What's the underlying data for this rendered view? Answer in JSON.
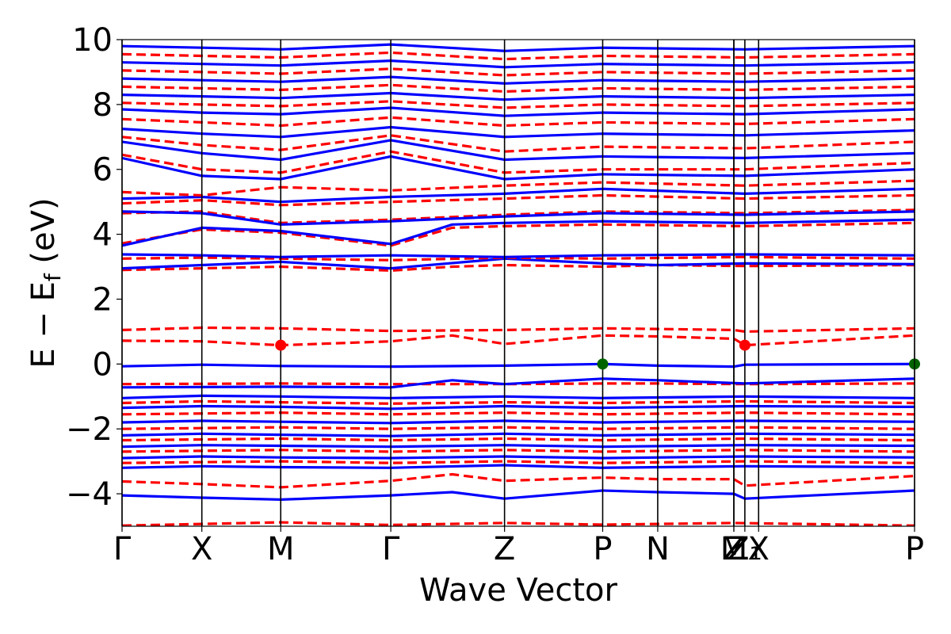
{
  "chart_data": {
    "type": "line",
    "title": "",
    "xlabel": "Wave Vector",
    "ylabel_main": "E − E",
    "ylabel_sub": "f",
    "ylabel_unit": " (eV)",
    "ylim": [
      -5,
      10
    ],
    "yticks": [
      -4,
      -2,
      0,
      2,
      4,
      6,
      8,
      10
    ],
    "ytick_labels": [
      "−4",
      "−2",
      "0",
      "2",
      "4",
      "6",
      "8",
      "10"
    ],
    "xlim": [
      0,
      8.64
    ],
    "kpoints": [
      {
        "label": "Γ",
        "x": 0
      },
      {
        "label": "X",
        "x": 0.87
      },
      {
        "label": "M",
        "x": 1.73
      },
      {
        "label": "Γ",
        "x": 2.93
      },
      {
        "label": "Z",
        "x": 4.17
      },
      {
        "label": "P",
        "x": 5.24
      },
      {
        "label": "N",
        "x": 5.84
      },
      {
        "label": "M",
        "x": 6.67
      },
      {
        "label": "Z",
        "x": 6.67
      },
      {
        "label": "Z₁",
        "x": 6.79
      },
      {
        "label": "X",
        "x": 6.94
      },
      {
        "label": "P",
        "x": 8.64
      }
    ],
    "colors": {
      "spin_up": "#0000ff",
      "spin_down": "#ff0000",
      "vbm": "#006400",
      "cbm": "#ff0000"
    },
    "series": [
      {
        "style": "dashed",
        "color": "#ff0000",
        "x": [
          0,
          0.87,
          1.73,
          2.93,
          4.17,
          5.24,
          5.84,
          6.67,
          6.79,
          8.64
        ],
        "y": [
          1.05,
          1.12,
          1.1,
          1.02,
          1.05,
          1.1,
          1.08,
          1.05,
          1.0,
          1.1
        ]
      },
      {
        "style": "dashed",
        "color": "#ff0000",
        "x": [
          0,
          0.87,
          1.73,
          2.93,
          3.6,
          4.17,
          5.24,
          5.84,
          6.67,
          6.79,
          8.64
        ],
        "y": [
          0.72,
          0.7,
          0.58,
          0.7,
          0.88,
          0.62,
          0.88,
          0.85,
          0.78,
          0.58,
          0.88
        ]
      },
      {
        "style": "solid",
        "color": "#0000ff",
        "x": [
          0,
          0.87,
          1.73,
          2.93,
          4.17,
          5.24,
          5.84,
          6.67,
          6.79,
          8.64
        ],
        "y": [
          -0.07,
          -0.02,
          -0.06,
          -0.08,
          -0.05,
          0.0,
          -0.05,
          -0.08,
          -0.02,
          0.0
        ]
      },
      {
        "style": "dashed",
        "color": "#ff0000",
        "x": [
          0,
          1.73,
          2.93,
          4.17,
          5.24,
          5.84,
          6.79,
          8.64
        ],
        "y": [
          -0.62,
          -0.6,
          -0.62,
          -0.62,
          -0.6,
          -0.6,
          -0.62,
          -0.6
        ]
      },
      {
        "style": "solid",
        "color": "#0000ff",
        "x": [
          0,
          1.73,
          2.93,
          3.6,
          4.17,
          5.24,
          5.84,
          6.79,
          8.64
        ],
        "y": [
          -0.72,
          -0.7,
          -0.72,
          -0.5,
          -0.62,
          -0.45,
          -0.5,
          -0.6,
          -0.45
        ]
      },
      {
        "style": "solid",
        "color": "#0000ff",
        "x": [
          0,
          0.87,
          1.73,
          2.93,
          4.17,
          5.24,
          6.79,
          8.64
        ],
        "y": [
          -1.05,
          -0.98,
          -1.0,
          -1.05,
          -1.0,
          -1.05,
          -1.0,
          -1.05
        ]
      },
      {
        "style": "dashed",
        "color": "#ff0000",
        "x": [
          0,
          0.87,
          1.73,
          2.93,
          4.17,
          5.24,
          6.79,
          8.64
        ],
        "y": [
          -1.2,
          -1.15,
          -1.18,
          -1.22,
          -1.18,
          -1.2,
          -1.15,
          -1.2
        ]
      },
      {
        "style": "solid",
        "color": "#0000ff",
        "x": [
          0,
          0.87,
          1.73,
          2.93,
          4.17,
          5.24,
          6.79,
          8.64
        ],
        "y": [
          -1.35,
          -1.3,
          -1.32,
          -1.38,
          -1.3,
          -1.35,
          -1.3,
          -1.32
        ]
      },
      {
        "style": "dashed",
        "color": "#ff0000",
        "x": [
          0,
          1.73,
          2.93,
          4.17,
          5.24,
          6.79,
          8.64
        ],
        "y": [
          -1.55,
          -1.5,
          -1.55,
          -1.5,
          -1.55,
          -1.5,
          -1.55
        ]
      },
      {
        "style": "solid",
        "color": "#0000ff",
        "x": [
          0,
          0.87,
          1.73,
          2.93,
          4.17,
          5.24,
          6.79,
          8.64
        ],
        "y": [
          -1.8,
          -1.75,
          -1.78,
          -1.82,
          -1.75,
          -1.8,
          -1.75,
          -1.78
        ]
      },
      {
        "style": "dashed",
        "color": "#ff0000",
        "x": [
          0,
          1.73,
          2.93,
          4.17,
          5.24,
          6.79,
          8.64
        ],
        "y": [
          -2.0,
          -1.95,
          -2.0,
          -1.95,
          -2.0,
          -1.95,
          -2.0
        ]
      },
      {
        "style": "solid",
        "color": "#0000ff",
        "x": [
          0,
          0.87,
          1.73,
          2.93,
          4.17,
          5.24,
          6.79,
          8.64
        ],
        "y": [
          -2.2,
          -2.15,
          -2.18,
          -2.22,
          -2.15,
          -2.2,
          -2.15,
          -2.18
        ]
      },
      {
        "style": "dashed",
        "color": "#ff0000",
        "x": [
          0,
          1.73,
          2.93,
          4.17,
          5.24,
          6.79,
          8.64
        ],
        "y": [
          -2.35,
          -2.3,
          -2.35,
          -2.3,
          -2.35,
          -2.3,
          -2.35
        ]
      },
      {
        "style": "solid",
        "color": "#0000ff",
        "x": [
          0,
          0.87,
          1.73,
          2.93,
          4.17,
          5.24,
          6.79,
          8.64
        ],
        "y": [
          -2.55,
          -2.5,
          -2.52,
          -2.55,
          -2.5,
          -2.55,
          -2.5,
          -2.52
        ]
      },
      {
        "style": "dashed",
        "color": "#ff0000",
        "x": [
          0,
          1.73,
          2.93,
          4.17,
          5.24,
          6.79,
          8.64
        ],
        "y": [
          -2.7,
          -2.65,
          -2.7,
          -2.65,
          -2.7,
          -2.65,
          -2.7
        ]
      },
      {
        "style": "solid",
        "color": "#0000ff",
        "x": [
          0,
          0.87,
          1.73,
          2.93,
          4.17,
          5.24,
          6.79,
          8.64
        ],
        "y": [
          -2.9,
          -2.85,
          -2.88,
          -2.9,
          -2.85,
          -2.9,
          -2.85,
          -2.88
        ]
      },
      {
        "style": "dashed",
        "color": "#ff0000",
        "x": [
          0,
          1.73,
          2.93,
          4.17,
          5.24,
          6.79,
          8.64
        ],
        "y": [
          -3.05,
          -3.0,
          -3.05,
          -3.0,
          -3.05,
          -3.0,
          -3.05
        ]
      },
      {
        "style": "solid",
        "color": "#0000ff",
        "x": [
          0,
          0.87,
          1.73,
          2.93,
          4.17,
          5.24,
          6.79,
          8.64
        ],
        "y": [
          -3.2,
          -3.15,
          -3.18,
          -3.2,
          -3.12,
          -3.2,
          -3.15,
          -3.18
        ]
      },
      {
        "style": "dashed",
        "color": "#ff0000",
        "x": [
          0,
          0.87,
          1.73,
          2.93,
          3.6,
          4.17,
          5.24,
          5.84,
          6.67,
          6.79,
          8.64
        ],
        "y": [
          -3.62,
          -3.7,
          -3.8,
          -3.6,
          -3.4,
          -3.6,
          -3.5,
          -3.55,
          -3.55,
          -3.75,
          -3.45
        ]
      },
      {
        "style": "solid",
        "color": "#0000ff",
        "x": [
          0,
          0.87,
          1.73,
          2.93,
          3.6,
          4.17,
          5.24,
          5.84,
          6.67,
          6.79,
          8.64
        ],
        "y": [
          -4.05,
          -4.12,
          -4.18,
          -4.05,
          -3.95,
          -4.15,
          -3.9,
          -3.95,
          -4.0,
          -4.15,
          -3.9
        ]
      },
      {
        "style": "dashed",
        "color": "#ff0000",
        "x": [
          0,
          1.73,
          2.93,
          4.17,
          5.24,
          6.67,
          8.64
        ],
        "y": [
          -4.98,
          -4.88,
          -4.96,
          -4.9,
          -4.95,
          -4.9,
          -4.98
        ]
      },
      {
        "style": "dashed",
        "color": "#ff0000",
        "x": [
          0,
          0.87,
          1.73,
          2.93,
          3.6,
          4.17,
          5.24,
          5.84,
          6.79,
          8.64
        ],
        "y": [
          2.9,
          2.95,
          3.0,
          2.88,
          3.0,
          3.05,
          3.0,
          3.05,
          3.02,
          3.05
        ]
      },
      {
        "style": "solid",
        "color": "#0000ff",
        "x": [
          0,
          0.87,
          1.73,
          2.93,
          4.17,
          5.24,
          5.84,
          6.79,
          8.64
        ],
        "y": [
          2.95,
          3.05,
          3.15,
          2.95,
          3.25,
          3.1,
          3.05,
          3.1,
          3.08
        ]
      },
      {
        "style": "dashed",
        "color": "#ff0000",
        "x": [
          0,
          0.87,
          1.73,
          2.93,
          4.17,
          5.24,
          6.79,
          8.64
        ],
        "y": [
          3.25,
          3.28,
          3.25,
          3.2,
          3.28,
          3.25,
          3.3,
          3.25
        ]
      },
      {
        "style": "solid",
        "color": "#0000ff",
        "x": [
          0,
          0.87,
          1.73,
          2.93,
          4.17,
          5.24,
          6.79,
          8.64
        ],
        "y": [
          3.38,
          3.35,
          3.3,
          3.35,
          3.3,
          3.35,
          3.38,
          3.35
        ]
      },
      {
        "style": "dashed",
        "color": "#ff0000",
        "x": [
          0,
          0.87,
          1.73,
          2.93,
          3.6,
          4.17,
          5.24,
          6.79,
          8.64
        ],
        "y": [
          3.72,
          4.15,
          4.05,
          3.65,
          4.2,
          4.25,
          4.3,
          4.25,
          4.35
        ]
      },
      {
        "style": "solid",
        "color": "#0000ff",
        "x": [
          0,
          0.87,
          1.73,
          2.93,
          3.6,
          4.17,
          5.24,
          6.79,
          8.64
        ],
        "y": [
          3.65,
          4.2,
          4.1,
          3.7,
          4.3,
          4.35,
          4.4,
          4.35,
          4.45
        ]
      },
      {
        "style": "dashed",
        "color": "#ff0000",
        "x": [
          0,
          0.87,
          1.73,
          2.93,
          4.17,
          5.24,
          6.79,
          8.64
        ],
        "y": [
          4.65,
          4.7,
          4.35,
          4.45,
          4.6,
          4.7,
          4.65,
          4.75
        ]
      },
      {
        "style": "solid",
        "color": "#0000ff",
        "x": [
          0,
          0.87,
          1.73,
          2.93,
          4.17,
          5.24,
          6.79,
          8.64
        ],
        "y": [
          4.7,
          4.65,
          4.3,
          4.4,
          4.55,
          4.65,
          4.6,
          4.7
        ]
      },
      {
        "style": "dashed",
        "color": "#ff0000",
        "x": [
          0,
          0.87,
          1.73,
          2.93,
          4.17,
          5.24,
          6.79,
          8.64
        ],
        "y": [
          4.95,
          5.05,
          4.9,
          5.0,
          5.1,
          5.2,
          5.1,
          5.2
        ]
      },
      {
        "style": "solid",
        "color": "#0000ff",
        "x": [
          0,
          0.87,
          1.73,
          2.93,
          4.17,
          5.24,
          6.79,
          8.64
        ],
        "y": [
          5.1,
          5.15,
          5.0,
          5.15,
          5.25,
          5.4,
          5.25,
          5.4
        ]
      },
      {
        "style": "dashed",
        "color": "#ff0000",
        "x": [
          0,
          0.87,
          1.73,
          2.93,
          4.17,
          5.24,
          6.79,
          8.64
        ],
        "y": [
          5.3,
          5.2,
          5.45,
          5.35,
          5.5,
          5.6,
          5.5,
          5.65
        ]
      },
      {
        "style": "solid",
        "color": "#0000ff",
        "x": [
          0,
          0.87,
          1.73,
          2.93,
          4.17,
          5.24,
          6.79,
          8.64
        ],
        "y": [
          6.35,
          5.8,
          5.7,
          6.4,
          5.7,
          5.85,
          5.8,
          6.0
        ]
      },
      {
        "style": "dashed",
        "color": "#ff0000",
        "x": [
          0,
          0.87,
          1.73,
          2.93,
          4.17,
          5.24,
          6.79,
          8.64
        ],
        "y": [
          6.45,
          6.0,
          5.9,
          6.55,
          5.9,
          6.0,
          6.0,
          6.2
        ]
      },
      {
        "style": "solid",
        "color": "#0000ff",
        "x": [
          0,
          0.87,
          1.73,
          2.93,
          4.17,
          5.24,
          6.79,
          8.64
        ],
        "y": [
          6.85,
          6.5,
          6.3,
          6.9,
          6.3,
          6.4,
          6.35,
          6.5
        ]
      },
      {
        "style": "dashed",
        "color": "#ff0000",
        "x": [
          0,
          0.87,
          1.73,
          2.93,
          4.17,
          5.24,
          6.79,
          8.64
        ],
        "y": [
          7.0,
          6.75,
          6.6,
          7.05,
          6.55,
          6.7,
          6.65,
          6.85
        ]
      },
      {
        "style": "solid",
        "color": "#0000ff",
        "x": [
          0,
          0.87,
          1.73,
          2.93,
          4.17,
          5.24,
          6.79,
          8.64
        ],
        "y": [
          7.25,
          7.1,
          7.0,
          7.3,
          7.0,
          7.1,
          7.05,
          7.2
        ]
      },
      {
        "style": "dashed",
        "color": "#ff0000",
        "x": [
          0,
          0.87,
          1.73,
          2.93,
          4.17,
          5.24,
          6.79,
          8.64
        ],
        "y": [
          7.55,
          7.45,
          7.35,
          7.6,
          7.35,
          7.45,
          7.4,
          7.55
        ]
      },
      {
        "style": "solid",
        "color": "#0000ff",
        "x": [
          0,
          0.87,
          1.73,
          2.93,
          4.17,
          5.24,
          6.79,
          8.64
        ],
        "y": [
          7.85,
          7.75,
          7.7,
          7.9,
          7.65,
          7.75,
          7.7,
          7.85
        ]
      },
      {
        "style": "dashed",
        "color": "#ff0000",
        "x": [
          0,
          0.87,
          1.73,
          2.93,
          4.17,
          5.24,
          6.79,
          8.64
        ],
        "y": [
          8.05,
          8.0,
          7.95,
          8.1,
          7.9,
          8.0,
          7.95,
          8.05
        ]
      },
      {
        "style": "solid",
        "color": "#0000ff",
        "x": [
          0,
          0.87,
          1.73,
          2.93,
          4.17,
          5.24,
          6.79,
          8.64
        ],
        "y": [
          8.3,
          8.25,
          8.2,
          8.35,
          8.15,
          8.25,
          8.2,
          8.3
        ]
      },
      {
        "style": "dashed",
        "color": "#ff0000",
        "x": [
          0,
          0.87,
          1.73,
          2.93,
          4.17,
          5.24,
          6.79,
          8.64
        ],
        "y": [
          8.55,
          8.5,
          8.45,
          8.6,
          8.4,
          8.5,
          8.45,
          8.55
        ]
      },
      {
        "style": "solid",
        "color": "#0000ff",
        "x": [
          0,
          0.87,
          1.73,
          2.93,
          4.17,
          5.24,
          6.79,
          8.64
        ],
        "y": [
          8.8,
          8.75,
          8.7,
          8.85,
          8.65,
          8.75,
          8.7,
          8.8
        ]
      },
      {
        "style": "dashed",
        "color": "#ff0000",
        "x": [
          0,
          0.87,
          1.73,
          2.93,
          4.17,
          5.24,
          6.79,
          8.64
        ],
        "y": [
          9.05,
          9.0,
          8.95,
          9.1,
          8.9,
          9.0,
          8.95,
          9.05
        ]
      },
      {
        "style": "solid",
        "color": "#0000ff",
        "x": [
          0,
          0.87,
          1.73,
          2.93,
          4.17,
          5.24,
          6.79,
          8.64
        ],
        "y": [
          9.3,
          9.25,
          9.2,
          9.35,
          9.15,
          9.25,
          9.2,
          9.3
        ]
      },
      {
        "style": "dashed",
        "color": "#ff0000",
        "x": [
          0,
          0.87,
          1.73,
          2.93,
          4.17,
          5.24,
          6.79,
          8.64
        ],
        "y": [
          9.55,
          9.5,
          9.45,
          9.6,
          9.4,
          9.5,
          9.45,
          9.55
        ]
      },
      {
        "style": "solid",
        "color": "#0000ff",
        "x": [
          0,
          0.87,
          1.73,
          2.93,
          4.17,
          5.24,
          6.79,
          8.64
        ],
        "y": [
          9.8,
          9.75,
          9.7,
          9.85,
          9.65,
          9.75,
          9.7,
          9.8
        ]
      }
    ],
    "markers": [
      {
        "role": "cbm",
        "x": 1.73,
        "y": 0.58,
        "color": "#ff0000"
      },
      {
        "role": "cbm",
        "x": 6.79,
        "y": 0.58,
        "color": "#ff0000"
      },
      {
        "role": "vbm",
        "x": 5.24,
        "y": 0.0,
        "color": "#006400"
      },
      {
        "role": "vbm",
        "x": 8.64,
        "y": 0.0,
        "color": "#006400"
      }
    ]
  }
}
